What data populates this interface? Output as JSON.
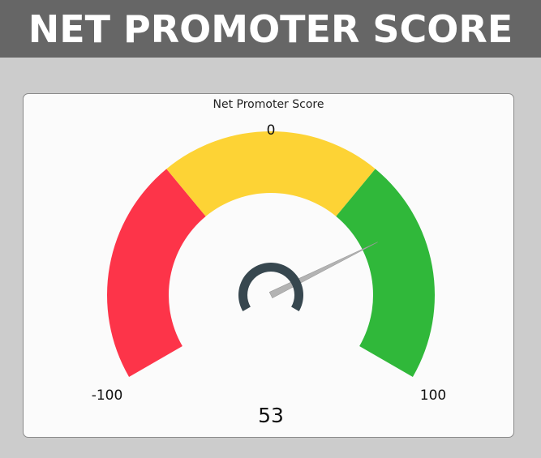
{
  "banner": {
    "title": "NET PROMOTER SCORE"
  },
  "chart_data": {
    "type": "gauge",
    "title": "Net Promoter Score",
    "min": -100,
    "max": 100,
    "value": 53,
    "tick_labels": {
      "min": "-100",
      "mid": "0",
      "max": "100"
    },
    "value_label": "53",
    "bands": [
      {
        "name": "red",
        "from": -100,
        "to": -33,
        "color": "#fd3449"
      },
      {
        "name": "yellow",
        "from": -33,
        "to": 33,
        "color": "#fdd335"
      },
      {
        "name": "green",
        "from": 33,
        "to": 100,
        "color": "#30b83a"
      }
    ],
    "needle_color": "#b3b3b3",
    "hub_color": "#37474f"
  }
}
